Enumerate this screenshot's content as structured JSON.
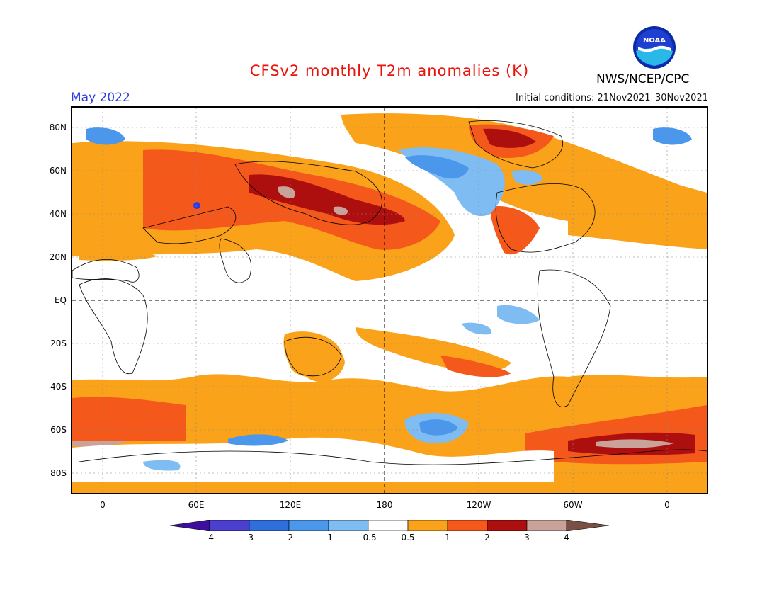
{
  "header": {
    "title": "CFSv2 monthly T2m anomalies (K)",
    "period": "May 2022",
    "initial_conditions": "Initial conditions: 21Nov2021–30Nov2021",
    "agency": "NWS/NCEP/CPC",
    "logo_text": "NOAA"
  },
  "axes": {
    "lat_labels": [
      "80N",
      "60N",
      "40N",
      "20N",
      "EQ",
      "20S",
      "40S",
      "60S",
      "80S"
    ],
    "lon_labels": [
      "0",
      "60E",
      "120E",
      "180",
      "120W",
      "60W",
      "0"
    ]
  },
  "colorbar": {
    "labels": [
      "-4",
      "-3",
      "-2",
      "-1",
      "-0.5",
      "0.5",
      "1",
      "2",
      "3",
      "4"
    ],
    "colors": {
      "lt_m4": "#3d0f9c",
      "m4_m3": "#4b3fcf",
      "m3_m2": "#2f6fdc",
      "m2_m1": "#4a97ec",
      "m1_m05": "#7fbcf2",
      "neutral": "#ffffff",
      "p05_p1": "#f9a21a",
      "p1_p2": "#f4581a",
      "p2_p3": "#ad0f0f",
      "p3_p4": "#c9a39a",
      "gt_p4": "#7a4f44"
    }
  },
  "colors": {
    "title": "#e8140c",
    "period": "#2f3be0",
    "land_outline": "#000000"
  }
}
